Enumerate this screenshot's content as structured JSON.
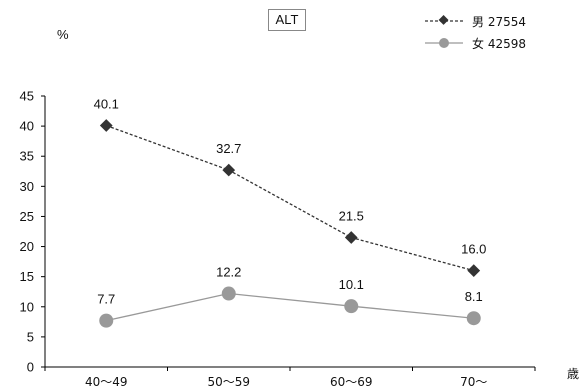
{
  "chart_data": {
    "type": "line",
    "title": "ALT",
    "ylabel": "%",
    "xlabel": "歳",
    "categories": [
      "40～49",
      "50～59",
      "60～69",
      "70～"
    ],
    "ylim": [
      0,
      45
    ],
    "yticks": [
      0,
      5,
      10,
      15,
      20,
      25,
      30,
      35,
      40,
      45
    ],
    "grid": false,
    "legend_position": "top-right",
    "series": [
      {
        "name": "男",
        "n": "27554",
        "values": [
          40.1,
          32.7,
          21.5,
          16.0
        ],
        "labels": [
          "40.1",
          "32.7",
          "21.5",
          "16.0"
        ],
        "color": "#333333",
        "line_style": "dashed",
        "marker": "diamond"
      },
      {
        "name": "女",
        "n": "42598",
        "values": [
          7.7,
          12.2,
          10.1,
          8.1
        ],
        "labels": [
          "7.7",
          "12.2",
          "10.1",
          "8.1"
        ],
        "color": "#999999",
        "line_style": "solid",
        "marker": "circle"
      }
    ]
  }
}
